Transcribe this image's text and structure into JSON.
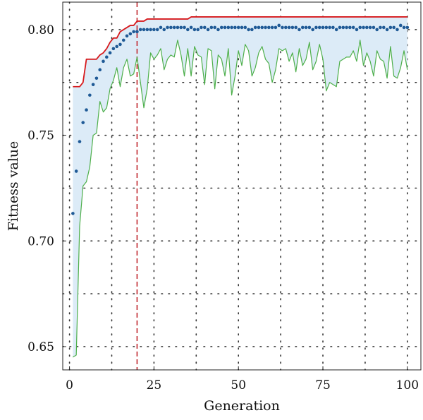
{
  "chart_data": {
    "type": "line",
    "title": "",
    "xlabel": "Generation",
    "ylabel": "Fitness value",
    "xlim": [
      -2,
      104
    ],
    "ylim": [
      0.639,
      0.813
    ],
    "xticks": [
      0,
      25,
      50,
      75,
      100
    ],
    "xtick_labels": [
      "0",
      "25",
      "50",
      "75",
      "100"
    ],
    "yticks": [
      0.65,
      0.7,
      0.75,
      0.8
    ],
    "ytick_labels": [
      "0.65",
      "0.70",
      "0.75",
      "0.80"
    ],
    "grid": true,
    "grid_style": "dotted",
    "legend": "none",
    "vertical_marker": {
      "x": 20,
      "style": "dashed",
      "color": "#c0262d"
    },
    "band_fill_color": "#dcebf7",
    "series": [
      {
        "style": "line",
        "color": "#d7191c",
        "x": [
          1,
          2,
          3,
          4,
          5,
          6,
          7,
          8,
          9,
          10,
          11,
          12,
          13,
          14,
          15,
          16,
          17,
          18,
          19,
          20,
          21,
          22,
          23,
          24,
          25,
          26,
          27,
          28,
          29,
          30,
          31,
          32,
          33,
          34,
          35,
          36,
          37,
          38,
          39,
          40,
          41,
          42,
          43,
          44,
          45,
          46,
          47,
          48,
          49,
          50,
          51,
          52,
          53,
          54,
          55,
          56,
          57,
          58,
          59,
          60,
          61,
          62,
          63,
          64,
          65,
          66,
          67,
          68,
          69,
          70,
          71,
          72,
          73,
          74,
          75,
          76,
          77,
          78,
          79,
          80,
          81,
          82,
          83,
          84,
          85,
          86,
          87,
          88,
          89,
          90,
          91,
          92,
          93,
          94,
          95,
          96,
          97,
          98,
          99,
          100
        ],
        "values": [
          0.773,
          0.773,
          0.773,
          0.775,
          0.786,
          0.786,
          0.786,
          0.786,
          0.788,
          0.789,
          0.791,
          0.794,
          0.796,
          0.796,
          0.799,
          0.8,
          0.801,
          0.802,
          0.802,
          0.804,
          0.804,
          0.804,
          0.805,
          0.805,
          0.805,
          0.805,
          0.805,
          0.805,
          0.805,
          0.805,
          0.805,
          0.805,
          0.805,
          0.805,
          0.805,
          0.806,
          0.806,
          0.806,
          0.806,
          0.806,
          0.806,
          0.806,
          0.806,
          0.806,
          0.806,
          0.806,
          0.806,
          0.806,
          0.806,
          0.806,
          0.806,
          0.806,
          0.806,
          0.806,
          0.806,
          0.806,
          0.806,
          0.806,
          0.806,
          0.806,
          0.806,
          0.806,
          0.806,
          0.806,
          0.806,
          0.806,
          0.806,
          0.806,
          0.806,
          0.806,
          0.806,
          0.806,
          0.806,
          0.806,
          0.806,
          0.806,
          0.806,
          0.806,
          0.806,
          0.806,
          0.806,
          0.806,
          0.806,
          0.806,
          0.806,
          0.806,
          0.806,
          0.806,
          0.806,
          0.806,
          0.806,
          0.806,
          0.806,
          0.806,
          0.806,
          0.806,
          0.806,
          0.806,
          0.806,
          0.806
        ]
      },
      {
        "style": "dots",
        "color": "#1f5a96",
        "x": [
          1,
          2,
          3,
          4,
          5,
          6,
          7,
          8,
          9,
          10,
          11,
          12,
          13,
          14,
          15,
          16,
          17,
          18,
          19,
          20,
          21,
          22,
          23,
          24,
          25,
          26,
          27,
          28,
          29,
          30,
          31,
          32,
          33,
          34,
          35,
          36,
          37,
          38,
          39,
          40,
          41,
          42,
          43,
          44,
          45,
          46,
          47,
          48,
          49,
          50,
          51,
          52,
          53,
          54,
          55,
          56,
          57,
          58,
          59,
          60,
          61,
          62,
          63,
          64,
          65,
          66,
          67,
          68,
          69,
          70,
          71,
          72,
          73,
          74,
          75,
          76,
          77,
          78,
          79,
          80,
          81,
          82,
          83,
          84,
          85,
          86,
          87,
          88,
          89,
          90,
          91,
          92,
          93,
          94,
          95,
          96,
          97,
          98,
          99,
          100
        ],
        "values": [
          0.713,
          0.733,
          0.747,
          0.756,
          0.762,
          0.769,
          0.774,
          0.777,
          0.781,
          0.785,
          0.787,
          0.789,
          0.791,
          0.792,
          0.793,
          0.795,
          0.797,
          0.798,
          0.799,
          0.799,
          0.8,
          0.8,
          0.8,
          0.8,
          0.8,
          0.8,
          0.801,
          0.8,
          0.801,
          0.801,
          0.801,
          0.801,
          0.801,
          0.801,
          0.8,
          0.801,
          0.8,
          0.8,
          0.801,
          0.801,
          0.8,
          0.801,
          0.801,
          0.8,
          0.801,
          0.801,
          0.801,
          0.801,
          0.801,
          0.801,
          0.801,
          0.801,
          0.8,
          0.8,
          0.801,
          0.801,
          0.801,
          0.801,
          0.801,
          0.801,
          0.801,
          0.802,
          0.801,
          0.801,
          0.801,
          0.801,
          0.801,
          0.8,
          0.801,
          0.801,
          0.801,
          0.8,
          0.801,
          0.801,
          0.801,
          0.801,
          0.801,
          0.801,
          0.8,
          0.801,
          0.801,
          0.801,
          0.801,
          0.801,
          0.8,
          0.801,
          0.801,
          0.801,
          0.801,
          0.801,
          0.8,
          0.801,
          0.801,
          0.8,
          0.801,
          0.801,
          0.8,
          0.802,
          0.801,
          0.801
        ]
      },
      {
        "style": "line",
        "color": "#4daf4a",
        "x": [
          1,
          2,
          3,
          4,
          5,
          6,
          7,
          8,
          9,
          10,
          11,
          12,
          13,
          14,
          15,
          16,
          17,
          18,
          19,
          20,
          21,
          22,
          23,
          24,
          25,
          26,
          27,
          28,
          29,
          30,
          31,
          32,
          33,
          34,
          35,
          36,
          37,
          38,
          39,
          40,
          41,
          42,
          43,
          44,
          45,
          46,
          47,
          48,
          49,
          50,
          51,
          52,
          53,
          54,
          55,
          56,
          57,
          58,
          59,
          60,
          61,
          62,
          63,
          64,
          65,
          66,
          67,
          68,
          69,
          70,
          71,
          72,
          73,
          74,
          75,
          76,
          77,
          78,
          79,
          80,
          81,
          82,
          83,
          84,
          85,
          86,
          87,
          88,
          89,
          90,
          91,
          92,
          93,
          94,
          95,
          96,
          97,
          98,
          99,
          100
        ],
        "values": [
          0.645,
          0.646,
          0.707,
          0.726,
          0.728,
          0.735,
          0.75,
          0.751,
          0.766,
          0.761,
          0.763,
          0.772,
          0.776,
          0.782,
          0.773,
          0.782,
          0.786,
          0.778,
          0.779,
          0.787,
          0.775,
          0.763,
          0.772,
          0.789,
          0.786,
          0.788,
          0.791,
          0.781,
          0.786,
          0.788,
          0.787,
          0.795,
          0.788,
          0.778,
          0.791,
          0.778,
          0.792,
          0.788,
          0.787,
          0.774,
          0.791,
          0.79,
          0.772,
          0.788,
          0.786,
          0.778,
          0.791,
          0.769,
          0.778,
          0.79,
          0.783,
          0.793,
          0.79,
          0.778,
          0.782,
          0.789,
          0.792,
          0.786,
          0.784,
          0.775,
          0.781,
          0.791,
          0.79,
          0.791,
          0.785,
          0.789,
          0.78,
          0.791,
          0.783,
          0.786,
          0.794,
          0.781,
          0.785,
          0.793,
          0.786,
          0.771,
          0.775,
          0.774,
          0.773,
          0.785,
          0.786,
          0.787,
          0.787,
          0.79,
          0.785,
          0.795,
          0.783,
          0.789,
          0.785,
          0.778,
          0.79,
          0.786,
          0.785,
          0.777,
          0.792,
          0.778,
          0.777,
          0.782,
          0.79,
          0.781
        ]
      }
    ]
  }
}
